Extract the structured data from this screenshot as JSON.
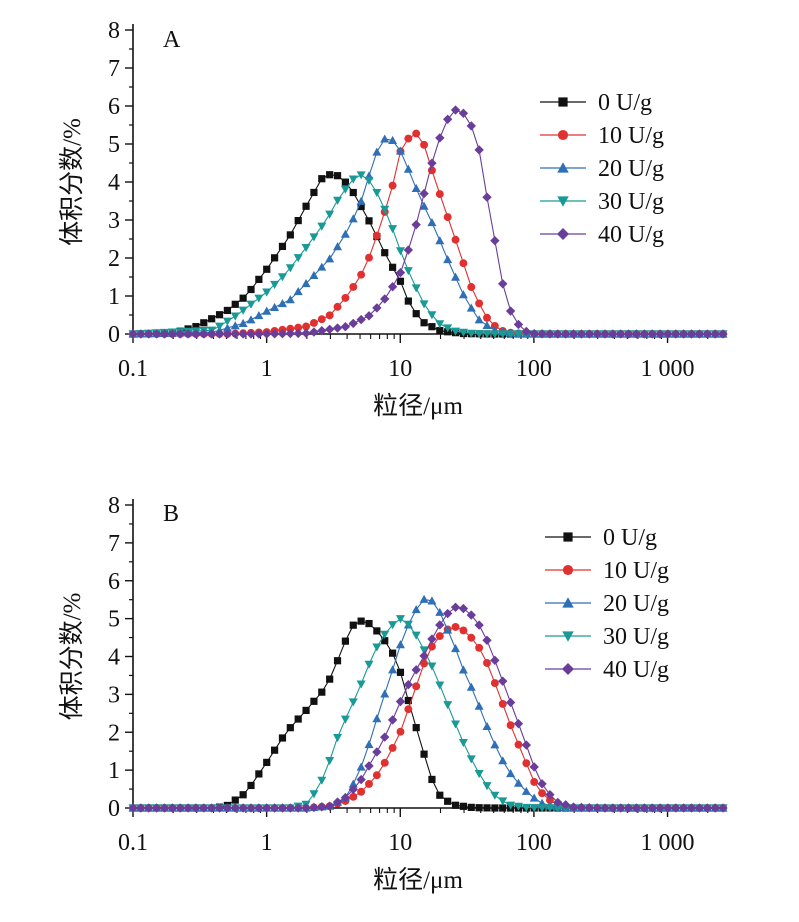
{
  "chart_data": [
    {
      "type": "line",
      "panel_label": "A",
      "xlabel": "粒径/μm",
      "ylabel": "体积分数/%",
      "xscale": "log",
      "xlim": [
        0.1,
        2600
      ],
      "ylim": [
        0,
        8
      ],
      "x_ticks": [
        0.1,
        1,
        10,
        100,
        1000
      ],
      "x_tick_labels": [
        "0.1",
        "1",
        "10",
        "100",
        "1 000"
      ],
      "y_ticks": [
        0,
        1,
        2,
        3,
        4,
        5,
        6,
        7,
        8
      ],
      "y_tick_labels": [
        "0",
        "1",
        "2",
        "3",
        "4",
        "5",
        "6",
        "7",
        "8"
      ],
      "legend_position": "top-right",
      "series": [
        {
          "name": "0 U/g",
          "color": "#111111",
          "marker": "square",
          "points": [
            [
              0.1,
              0
            ],
            [
              0.2,
              0.02
            ],
            [
              0.3,
              0.2
            ],
            [
              0.5,
              0.6
            ],
            [
              0.7,
              1.0
            ],
            [
              1.0,
              1.7
            ],
            [
              1.5,
              2.6
            ],
            [
              2.0,
              3.4
            ],
            [
              2.6,
              4.1
            ],
            [
              3.0,
              4.2
            ],
            [
              3.6,
              4.15
            ],
            [
              4.5,
              3.7
            ],
            [
              6,
              2.9
            ],
            [
              8,
              2.0
            ],
            [
              10,
              1.4
            ],
            [
              12,
              0.7
            ],
            [
              15,
              0.3
            ],
            [
              20,
              0.08
            ],
            [
              30,
              0.01
            ],
            [
              50,
              0
            ],
            [
              100,
              0
            ],
            [
              1000,
              0
            ],
            [
              2600,
              0
            ]
          ]
        },
        {
          "name": "10 U/g",
          "color": "#e03030",
          "marker": "circle",
          "points": [
            [
              0.1,
              0
            ],
            [
              0.5,
              0
            ],
            [
              1.0,
              0.05
            ],
            [
              2,
              0.2
            ],
            [
              3,
              0.5
            ],
            [
              4,
              1.0
            ],
            [
              5,
              1.5
            ],
            [
              6,
              2.1
            ],
            [
              7,
              2.8
            ],
            [
              8.5,
              3.7
            ],
            [
              10,
              4.8
            ],
            [
              12,
              5.25
            ],
            [
              13,
              5.3
            ],
            [
              15,
              5.0
            ],
            [
              18,
              4.1
            ],
            [
              22,
              3.2
            ],
            [
              27,
              2.3
            ],
            [
              35,
              1.1
            ],
            [
              45,
              0.4
            ],
            [
              55,
              0.1
            ],
            [
              70,
              0.02
            ],
            [
              100,
              0
            ],
            [
              1000,
              0
            ],
            [
              2600,
              0
            ]
          ]
        },
        {
          "name": "20 U/g",
          "color": "#2e6fb5",
          "marker": "triangle-up",
          "points": [
            [
              0.1,
              0
            ],
            [
              0.4,
              0.05
            ],
            [
              0.7,
              0.3
            ],
            [
              1,
              0.6
            ],
            [
              1.5,
              0.9
            ],
            [
              2.2,
              1.5
            ],
            [
              3,
              2.0
            ],
            [
              4,
              2.7
            ],
            [
              5,
              3.4
            ],
            [
              6,
              4.3
            ],
            [
              7,
              5.0
            ],
            [
              8,
              5.2
            ],
            [
              9.5,
              5.0
            ],
            [
              11,
              4.5
            ],
            [
              14,
              3.6
            ],
            [
              18,
              2.8
            ],
            [
              23,
              1.9
            ],
            [
              30,
              1.0
            ],
            [
              38,
              0.4
            ],
            [
              50,
              0.1
            ],
            [
              70,
              0.01
            ],
            [
              100,
              0
            ],
            [
              1000,
              0
            ],
            [
              2600,
              0
            ]
          ]
        },
        {
          "name": "30 U/g",
          "color": "#1a9a96",
          "marker": "triangle-down",
          "points": [
            [
              0.1,
              0
            ],
            [
              0.4,
              0.1
            ],
            [
              0.6,
              0.5
            ],
            [
              1,
              1.1
            ],
            [
              1.4,
              1.6
            ],
            [
              2,
              2.3
            ],
            [
              2.8,
              3.0
            ],
            [
              3.5,
              3.6
            ],
            [
              4.5,
              4.1
            ],
            [
              5.2,
              4.2
            ],
            [
              6,
              4.0
            ],
            [
              7,
              3.6
            ],
            [
              8.5,
              2.9
            ],
            [
              10,
              2.2
            ],
            [
              12,
              1.5
            ],
            [
              15,
              0.8
            ],
            [
              19,
              0.3
            ],
            [
              25,
              0.08
            ],
            [
              35,
              0.01
            ],
            [
              50,
              0
            ],
            [
              100,
              0
            ],
            [
              1000,
              0
            ],
            [
              2600,
              0
            ]
          ]
        },
        {
          "name": "40 U/g",
          "color": "#6a3d9a",
          "marker": "diamond",
          "points": [
            [
              0.1,
              0
            ],
            [
              1,
              0
            ],
            [
              2,
              0.02
            ],
            [
              4,
              0.2
            ],
            [
              6,
              0.5
            ],
            [
              8,
              1.0
            ],
            [
              10,
              1.6
            ],
            [
              12,
              2.4
            ],
            [
              14,
              3.2
            ],
            [
              16,
              4.1
            ],
            [
              19,
              5.0
            ],
            [
              22,
              5.6
            ],
            [
              26,
              5.9
            ],
            [
              30,
              5.8
            ],
            [
              35,
              5.4
            ],
            [
              40,
              4.7
            ],
            [
              45,
              3.5
            ],
            [
              52,
              2.3
            ],
            [
              60,
              1.1
            ],
            [
              70,
              0.4
            ],
            [
              85,
              0.08
            ],
            [
              100,
              0.01
            ],
            [
              150,
              0
            ],
            [
              1000,
              0
            ],
            [
              2600,
              0
            ]
          ]
        }
      ]
    },
    {
      "type": "line",
      "panel_label": "B",
      "xlabel": "粒径/μm",
      "ylabel": "体积分数/%",
      "xscale": "log",
      "xlim": [
        0.1,
        2600
      ],
      "ylim": [
        0,
        8
      ],
      "x_ticks": [
        0.1,
        1,
        10,
        100,
        1000
      ],
      "x_tick_labels": [
        "0.1",
        "1",
        "10",
        "100",
        "1 000"
      ],
      "y_ticks": [
        0,
        1,
        2,
        3,
        4,
        5,
        6,
        7,
        8
      ],
      "y_tick_labels": [
        "0",
        "1",
        "2",
        "3",
        "4",
        "5",
        "6",
        "7",
        "8"
      ],
      "legend_position": "top-right",
      "series": [
        {
          "name": "0 U/g",
          "color": "#111111",
          "marker": "square",
          "points": [
            [
              0.1,
              0
            ],
            [
              0.4,
              0
            ],
            [
              0.5,
              0.05
            ],
            [
              0.7,
              0.4
            ],
            [
              1.0,
              1.2
            ],
            [
              1.4,
              2.0
            ],
            [
              2.0,
              2.6
            ],
            [
              2.8,
              3.2
            ],
            [
              3.5,
              4.0
            ],
            [
              4.3,
              4.8
            ],
            [
              5.2,
              4.95
            ],
            [
              6,
              4.85
            ],
            [
              7,
              4.6
            ],
            [
              8.5,
              4.2
            ],
            [
              10,
              3.6
            ],
            [
              12,
              2.6
            ],
            [
              14,
              1.8
            ],
            [
              17,
              0.8
            ],
            [
              20,
              0.3
            ],
            [
              25,
              0.08
            ],
            [
              35,
              0.01
            ],
            [
              50,
              0
            ],
            [
              100,
              0
            ],
            [
              1000,
              0
            ],
            [
              2600,
              0
            ]
          ]
        },
        {
          "name": "10 U/g",
          "color": "#e03030",
          "marker": "circle",
          "points": [
            [
              0.1,
              0
            ],
            [
              0.5,
              0
            ],
            [
              2,
              0
            ],
            [
              3,
              0.05
            ],
            [
              4,
              0.2
            ],
            [
              5,
              0.4
            ],
            [
              6.5,
              0.8
            ],
            [
              8,
              1.3
            ],
            [
              10,
              2.0
            ],
            [
              12,
              2.8
            ],
            [
              15,
              3.8
            ],
            [
              18,
              4.4
            ],
            [
              22,
              4.7
            ],
            [
              27,
              4.8
            ],
            [
              32,
              4.6
            ],
            [
              38,
              4.3
            ],
            [
              45,
              3.8
            ],
            [
              55,
              3.0
            ],
            [
              70,
              2.0
            ],
            [
              85,
              1.3
            ],
            [
              100,
              0.7
            ],
            [
              120,
              0.3
            ],
            [
              150,
              0.08
            ],
            [
              200,
              0.01
            ],
            [
              300,
              0
            ],
            [
              1000,
              0
            ],
            [
              2600,
              0
            ]
          ]
        },
        {
          "name": "20 U/g",
          "color": "#2e6fb5",
          "marker": "triangle-up",
          "points": [
            [
              0.1,
              0
            ],
            [
              2,
              0
            ],
            [
              3,
              0.05
            ],
            [
              4,
              0.3
            ],
            [
              5,
              1.0
            ],
            [
              6,
              1.8
            ],
            [
              7,
              2.6
            ],
            [
              8.5,
              3.5
            ],
            [
              10,
              4.3
            ],
            [
              12,
              5.0
            ],
            [
              14,
              5.4
            ],
            [
              16,
              5.6
            ],
            [
              19,
              5.3
            ],
            [
              22,
              4.8
            ],
            [
              26,
              4.2
            ],
            [
              30,
              3.6
            ],
            [
              36,
              3.0
            ],
            [
              44,
              2.2
            ],
            [
              55,
              1.4
            ],
            [
              70,
              0.8
            ],
            [
              90,
              0.4
            ],
            [
              110,
              0.15
            ],
            [
              140,
              0.03
            ],
            [
              200,
              0
            ],
            [
              1000,
              0
            ],
            [
              2600,
              0
            ]
          ]
        },
        {
          "name": "30 U/g",
          "color": "#1a9a96",
          "marker": "triangle-down",
          "points": [
            [
              0.1,
              0
            ],
            [
              1.5,
              0
            ],
            [
              2,
              0.1
            ],
            [
              2.5,
              0.6
            ],
            [
              3,
              1.3
            ],
            [
              3.5,
              2.0
            ],
            [
              4.2,
              2.6
            ],
            [
              5,
              3.2
            ],
            [
              6,
              3.9
            ],
            [
              7,
              4.4
            ],
            [
              8.5,
              4.8
            ],
            [
              10,
              5.0
            ],
            [
              12,
              4.8
            ],
            [
              14,
              4.4
            ],
            [
              17,
              3.8
            ],
            [
              20,
              3.2
            ],
            [
              24,
              2.5
            ],
            [
              29,
              1.8
            ],
            [
              35,
              1.2
            ],
            [
              42,
              0.7
            ],
            [
              52,
              0.3
            ],
            [
              65,
              0.08
            ],
            [
              90,
              0.01
            ],
            [
              150,
              0
            ],
            [
              1000,
              0
            ],
            [
              2600,
              0
            ]
          ]
        },
        {
          "name": "40 U/g",
          "color": "#6a3d9a",
          "marker": "diamond",
          "points": [
            [
              0.1,
              0
            ],
            [
              2,
              0
            ],
            [
              3,
              0.05
            ],
            [
              4,
              0.3
            ],
            [
              5,
              0.7
            ],
            [
              6.5,
              1.4
            ],
            [
              8,
              2.0
            ],
            [
              10,
              2.8
            ],
            [
              12,
              3.4
            ],
            [
              15,
              4.0
            ],
            [
              18,
              4.6
            ],
            [
              22,
              5.1
            ],
            [
              27,
              5.35
            ],
            [
              32,
              5.2
            ],
            [
              38,
              4.9
            ],
            [
              45,
              4.4
            ],
            [
              55,
              3.6
            ],
            [
              70,
              2.6
            ],
            [
              85,
              1.8
            ],
            [
              100,
              1.1
            ],
            [
              120,
              0.5
            ],
            [
              150,
              0.15
            ],
            [
              200,
              0.02
            ],
            [
              300,
              0
            ],
            [
              1000,
              0
            ],
            [
              2600,
              0
            ]
          ]
        }
      ]
    }
  ]
}
